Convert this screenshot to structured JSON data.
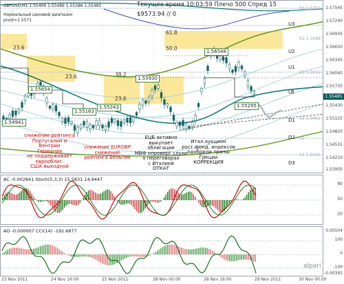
{
  "header": {
    "symbol_line": "GBPUSD,H1  1.55406  1.55489  1.55386  1.55485",
    "subtitle_line1": "Нормальный ценовой диапазон",
    "subtitle_line2": "pivot=1.5571",
    "time_line": "Текущее время 10:03:59  Плечо 500  Спред 15",
    "balance_line": "$9573.94  //  0"
  },
  "price_axis": {
    "ticks": [
      "1.57545",
      "1.57240",
      "1.56935",
      "1.56650",
      "1.56345",
      "1.56040",
      "1.55735",
      "1.55430",
      "1.55125",
      "1.54820",
      "1.54515",
      "1.54210",
      "1.53905"
    ],
    "current_price": "1.55485"
  },
  "levels": {
    "u3": "U3",
    "u2": "U2",
    "u1": "U1",
    "lb": "LB",
    "d1": "D1",
    "d2": "D2",
    "d3": "D3",
    "r3": "R3",
    "r2": "R2",
    "r1": "R1",
    "s1": "S1",
    "s2": "S2",
    "s3": "S3",
    "r3_value": "1.5750",
    "r2_value": "1.5688",
    "r1_value": "1.5612",
    "s1_value": "1.5492",
    "s3_value": "1.5420"
  },
  "fib": {
    "f1": "23.6",
    "f2": "23.6",
    "f3": "23.6",
    "f4": "38.2",
    "f5": "61.8",
    "f6": "50.0"
  },
  "price_boxes": [
    "1.55654",
    "1.55163",
    "1.55243",
    "1.55930",
    "1.56548",
    "1.55295",
    "1.54941"
  ],
  "notes": [
    {
      "text": "снижение рейтинга\nПортугалии и\nВенгрии\nГермания\nне поддерживает\nеврооблиг.\nСША выходной",
      "color": "red"
    },
    {
      "text": "снижение EURGBP\nснижение\nрейтинга Бельгии",
      "color": "red"
    },
    {
      "text": "ЕЦБ активно\nвыкупает\nоблигации\nМВФ опроверг слухи\nо переговорах\nс Италией\nОТКАТ",
      "color": "dark"
    },
    {
      "text": "Итал.аукцион\nрост фонд. индексов\nодобрили транш\nГреции\nКОРРЕКЦИЯ",
      "color": "dark"
    }
  ],
  "indicators": {
    "stoch_title": "AC -0.002841  Stoch(5,3,3) 15.5831  14.9447",
    "stoch_ticks": [
      "80",
      "50",
      "20"
    ],
    "cci_title": "AO -0.000007  CCI(14) -192.6877",
    "cci_ticks": [
      "100",
      "0",
      "-100"
    ],
    "ao_ticks": [
      "0.00504",
      "0",
      "-0.00393"
    ]
  },
  "x_axis": {
    "labels": [
      "23 Nov 2011",
      "24 Nov 16:00",
      "25 Nov 2011",
      "28 Nov 00:00",
      "28 Nov 16:00",
      "29 Nov 2011",
      "30 Nov 00:00"
    ]
  },
  "branding": {
    "logo": "alpari"
  },
  "colors": {
    "candle": "#0a6a6a",
    "ma_green": "#6a9a1a",
    "ma_teal": "#0a7a7a",
    "zone": "#fbe79a",
    "bear_text": "#d00000",
    "stoch_main": "#d00000",
    "stoch_signal": "#1a7a1a"
  }
}
